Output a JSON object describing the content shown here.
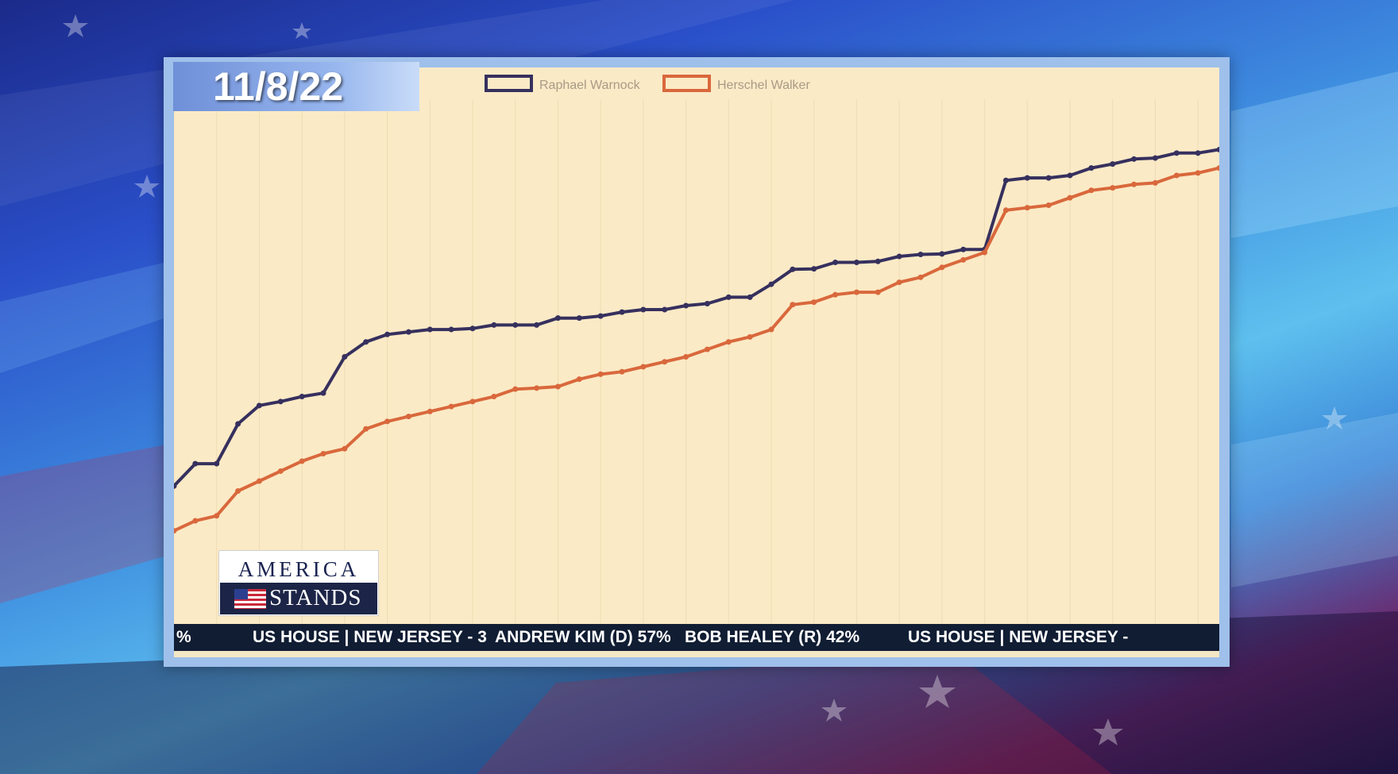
{
  "date_label": "11/8/22",
  "logo": {
    "line1": "AMERICA",
    "line2": "STANDS"
  },
  "ticker": {
    "items": [
      "%",
      "US HOUSE | NEW JERSEY - 3",
      "ANDREW KIM (D) 57%",
      "BOB HEALEY (R) 42%",
      "US HOUSE | NEW JERSEY -"
    ]
  },
  "colors": {
    "chart_background": "#fbeac6",
    "warnock": "#36305e",
    "walker": "#d9683c",
    "ticker_background": "#101d33"
  },
  "chart_data": {
    "type": "line",
    "title": "",
    "xlabel": "",
    "ylabel": "",
    "legend_position": "top-left",
    "grid": true,
    "ylim": [
      0,
      100
    ],
    "x": [
      1,
      2,
      3,
      4,
      5,
      6,
      7,
      8,
      9,
      10,
      11,
      12,
      13,
      14,
      15,
      16,
      17,
      18,
      19,
      20,
      21,
      22,
      23,
      24,
      25,
      26,
      27,
      28,
      29,
      30,
      31,
      32,
      33,
      34,
      35,
      36,
      37,
      38,
      39,
      40,
      41,
      42,
      43,
      44,
      45,
      46,
      47,
      48,
      49,
      50
    ],
    "series": [
      {
        "name": "Raphael Warnock",
        "color": "#36305e",
        "values": [
          26,
          30.5,
          30.5,
          38.5,
          42.2,
          43,
          44,
          44.7,
          52,
          55,
          56.5,
          57,
          57.5,
          57.5,
          57.7,
          58.4,
          58.4,
          58.4,
          59.8,
          59.8,
          60.2,
          61,
          61.5,
          61.5,
          62.3,
          62.7,
          64,
          64,
          66.6,
          69.6,
          69.7,
          71,
          71,
          71.2,
          72.2,
          72.6,
          72.7,
          73.6,
          73.6,
          87.5,
          88,
          88,
          88.5,
          90,
          90.8,
          91.8,
          92,
          93,
          93,
          93.7
        ]
      },
      {
        "name": "Herschel Walker",
        "color": "#d9683c",
        "values": [
          17,
          19,
          20,
          25,
          27,
          29,
          31,
          32.5,
          33.5,
          37.5,
          39,
          40,
          41,
          42,
          43,
          44,
          45.5,
          45.7,
          46,
          47.5,
          48.5,
          49,
          50,
          51,
          52,
          53.5,
          55,
          56,
          57.5,
          62.5,
          63,
          64.5,
          65,
          65,
          67,
          68,
          70,
          71.5,
          73,
          81.5,
          82,
          82.5,
          84,
          85.5,
          86,
          86.7,
          87,
          88.5,
          89,
          90
        ]
      }
    ]
  }
}
